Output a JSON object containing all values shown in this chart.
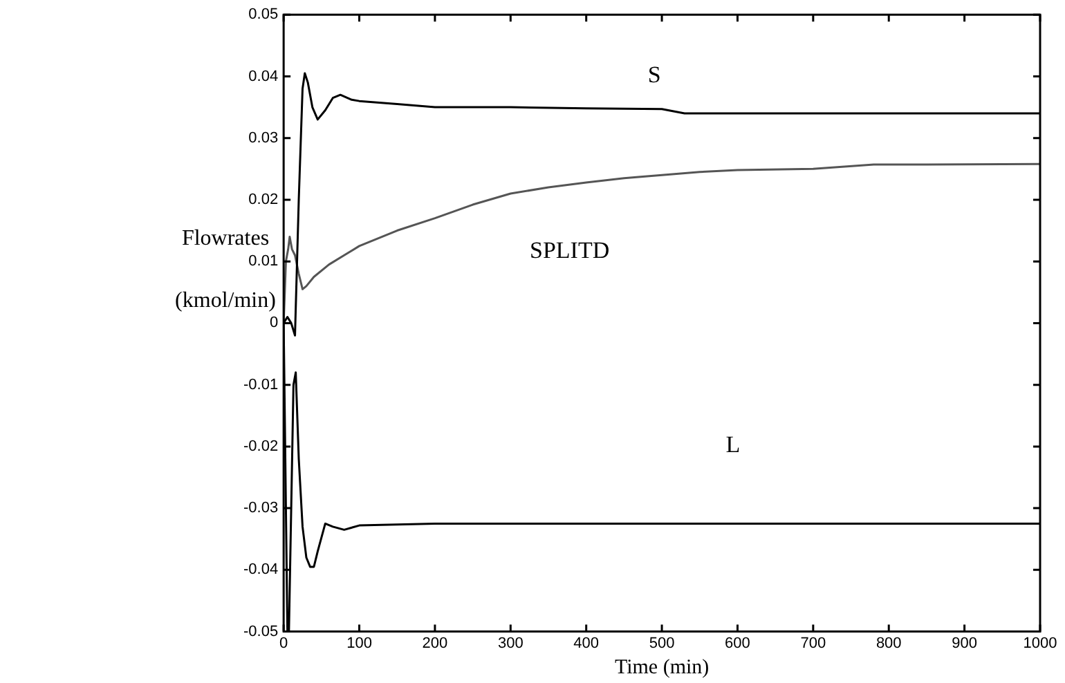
{
  "chart_data": {
    "type": "line",
    "xlabel": "Time (min)",
    "ylabel": "Flowrates (kmol/min)",
    "xlim": [
      0,
      1000
    ],
    "xticks": [
      0,
      100,
      200,
      300,
      400,
      500,
      600,
      700,
      800,
      900,
      1000
    ],
    "ylim": [
      -0.05,
      0.05
    ],
    "yticks": [
      -0.05,
      -0.04,
      -0.03,
      -0.02,
      -0.01,
      0,
      0.01,
      0.02,
      0.03,
      0.04,
      0.05
    ],
    "grid": false,
    "legend": false,
    "marker": "none",
    "line_style": "solid",
    "series": [
      {
        "name": "S",
        "color": "#000000",
        "x": [
          0,
          5,
          10,
          15,
          20,
          25,
          28,
          32,
          38,
          45,
          55,
          65,
          75,
          90,
          100,
          150,
          200,
          300,
          400,
          500,
          530,
          600,
          700,
          800,
          900,
          1000
        ],
        "values": [
          0,
          0.001,
          0.0,
          -0.002,
          0.02,
          0.038,
          0.0405,
          0.039,
          0.035,
          0.033,
          0.0345,
          0.0365,
          0.037,
          0.0362,
          0.036,
          0.0355,
          0.035,
          0.035,
          0.0348,
          0.0347,
          0.034,
          0.034,
          0.034,
          0.034,
          0.034,
          0.034
        ]
      },
      {
        "name": "SPLITD",
        "color": "#555555",
        "x": [
          0,
          3,
          6,
          8,
          11,
          15,
          20,
          25,
          30,
          40,
          60,
          80,
          100,
          150,
          200,
          250,
          300,
          350,
          400,
          450,
          500,
          550,
          600,
          700,
          780,
          850,
          1000
        ],
        "values": [
          0,
          0.01,
          0.012,
          0.014,
          0.012,
          0.011,
          0.008,
          0.0055,
          0.006,
          0.0075,
          0.0095,
          0.011,
          0.0125,
          0.015,
          0.017,
          0.0192,
          0.021,
          0.022,
          0.0228,
          0.0235,
          0.024,
          0.0245,
          0.0248,
          0.025,
          0.0257,
          0.0257,
          0.0258
        ]
      },
      {
        "name": "L",
        "color": "#000000",
        "x": [
          0,
          3,
          5,
          7,
          10,
          13,
          16,
          20,
          25,
          30,
          35,
          40,
          45,
          55,
          65,
          80,
          100,
          200,
          300,
          400,
          500,
          600,
          700,
          800,
          900,
          1000
        ],
        "values": [
          0,
          -0.03,
          -0.05,
          -0.05,
          -0.03,
          -0.01,
          -0.008,
          -0.022,
          -0.033,
          -0.038,
          -0.0395,
          -0.0395,
          -0.037,
          -0.0325,
          -0.033,
          -0.0335,
          -0.0328,
          -0.0325,
          -0.0325,
          -0.0325,
          -0.0325,
          -0.0325,
          -0.0325,
          -0.0325,
          -0.0325,
          -0.0325
        ]
      }
    ]
  }
}
